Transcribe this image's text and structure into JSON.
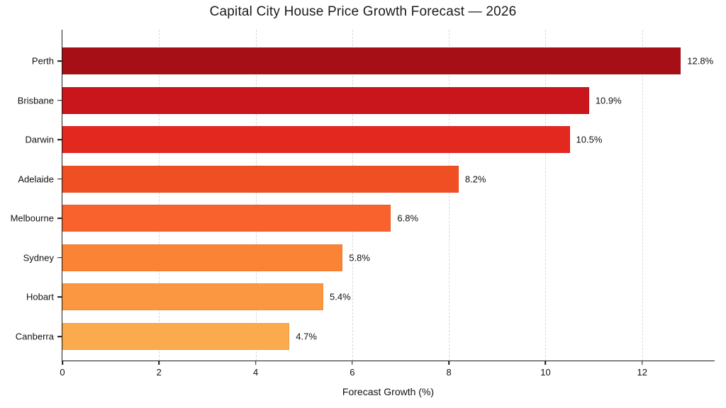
{
  "chart_data": {
    "type": "bar",
    "orientation": "horizontal",
    "title": "Capital City House Price Growth Forecast — 2026",
    "xlabel": "Forecast Growth (%)",
    "ylabel": "",
    "categories": [
      "Perth",
      "Brisbane",
      "Darwin",
      "Adelaide",
      "Melbourne",
      "Sydney",
      "Hobart",
      "Canberra"
    ],
    "values": [
      12.8,
      10.9,
      10.5,
      8.2,
      6.8,
      5.8,
      5.4,
      4.7
    ],
    "value_labels": [
      "12.8%",
      "10.9%",
      "10.5%",
      "8.2%",
      "6.8%",
      "5.8%",
      "5.4%",
      "4.7%"
    ],
    "bar_colors": [
      "#a50f15",
      "#c9161d",
      "#e3281f",
      "#f04f23",
      "#f9622c",
      "#fb8336",
      "#fc9741",
      "#fbaa4e"
    ],
    "xlim": [
      0,
      13.5
    ],
    "xticks": [
      0,
      2,
      4,
      6,
      8,
      10,
      12
    ],
    "grid": "vertical dashed gridlines at x ticks",
    "legend": "none",
    "colors": {
      "background": "#ffffff",
      "axis": "#1a1a1a",
      "grid": "#d8d8d8",
      "text": "#111111"
    }
  }
}
